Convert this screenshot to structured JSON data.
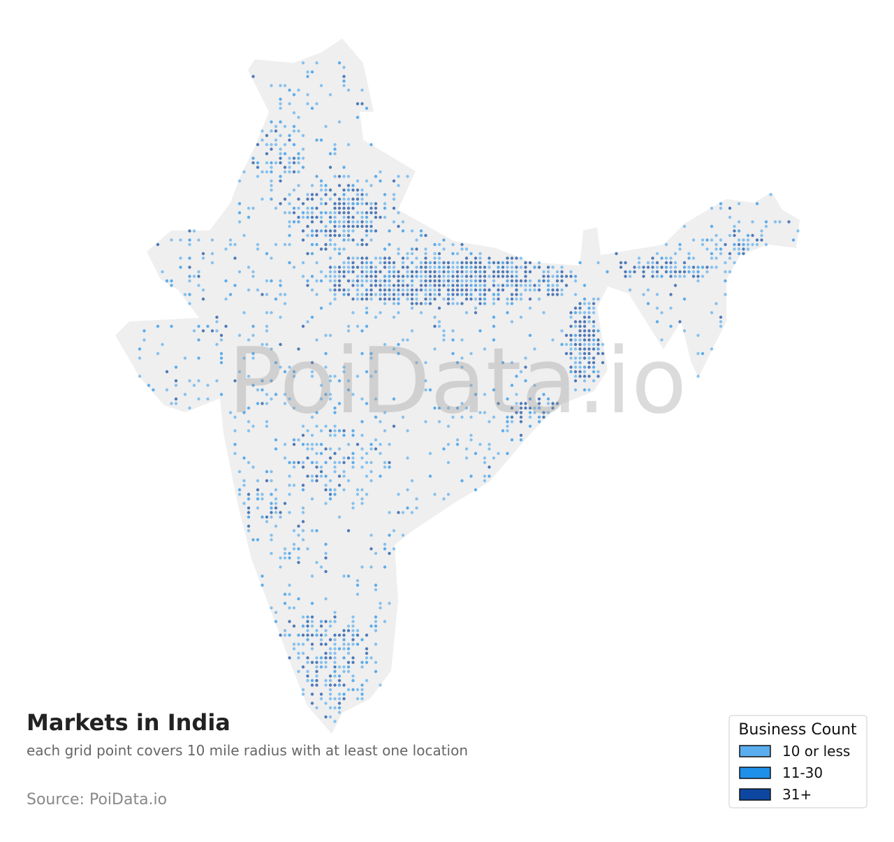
{
  "title": "Markets in India",
  "subtitle": "each grid point covers 10 mile radius with at least one location",
  "source": "Source: PoiData.io",
  "watermark": "PoiData.io",
  "legend": {
    "title": "Business Count",
    "items": [
      {
        "label": "10 or less",
        "color": "#5aaeee"
      },
      {
        "label": "11-30",
        "color": "#1e90ea"
      },
      {
        "label": "31+",
        "color": "#0d47a1"
      }
    ]
  }
}
